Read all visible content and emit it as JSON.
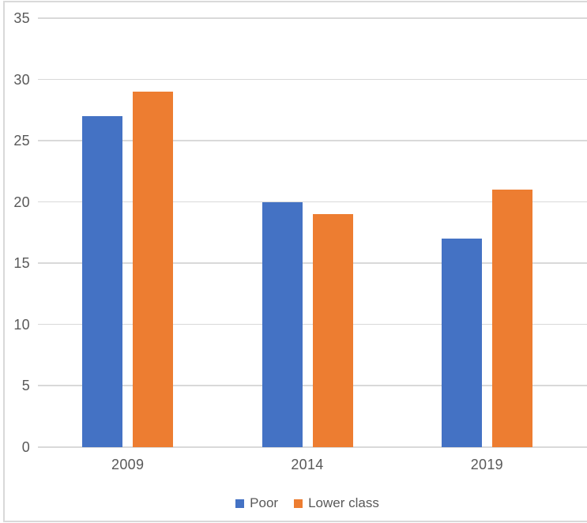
{
  "chart_data": {
    "type": "bar",
    "title": "",
    "xlabel": "",
    "ylabel": "",
    "categories": [
      "2009",
      "2014",
      "2019"
    ],
    "series": [
      {
        "name": "Poor",
        "color": "#4472C4",
        "values": [
          27,
          20,
          17
        ]
      },
      {
        "name": "Lower class",
        "color": "#ED7D31",
        "values": [
          29,
          19,
          21
        ]
      }
    ],
    "ylim": [
      0,
      35
    ],
    "yticks": [
      0,
      5,
      10,
      15,
      20,
      25,
      30,
      35
    ],
    "grid": true,
    "legend_position": "bottom",
    "colors": {
      "gridline": "#D9D9D9",
      "axis_line": "#D9D9D9",
      "frame_border": "#D9D9D9",
      "tick_label": "#595959",
      "background": "#FFFFFF"
    }
  }
}
